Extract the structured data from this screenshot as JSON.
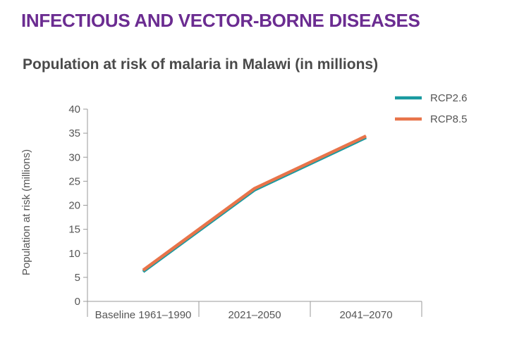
{
  "header": {
    "section_title": "INFECTIOUS AND VECTOR-BORNE DISEASES"
  },
  "chart_data": {
    "type": "line",
    "title": "Population at risk of malaria in Malawi (in millions)",
    "xlabel": "",
    "ylabel": "Population at risk (millions)",
    "categories": [
      "Baseline 1961–1990",
      "2021–2050",
      "2041–2070"
    ],
    "ylim": [
      0,
      40
    ],
    "yticks": [
      0,
      5,
      10,
      15,
      20,
      25,
      30,
      35,
      40
    ],
    "series": [
      {
        "name": "RCP2.6",
        "values": [
          6.2,
          23.2,
          34.1
        ],
        "color": "#1a9aa0"
      },
      {
        "name": "RCP8.5",
        "values": [
          6.5,
          23.5,
          34.4
        ],
        "color": "#e8744a"
      }
    ],
    "legend_position": "top-right",
    "grid": false
  }
}
